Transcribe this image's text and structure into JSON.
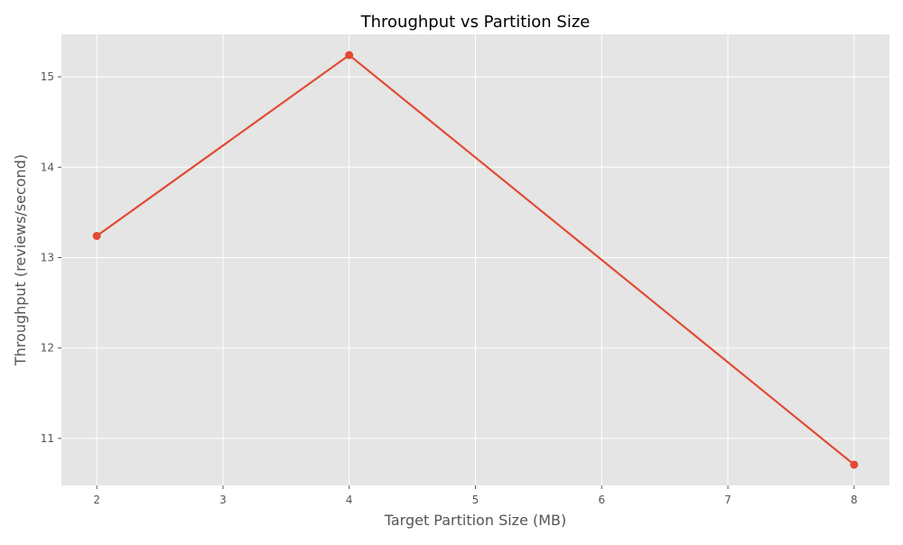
{
  "chart_data": {
    "type": "line",
    "title": "Throughput vs Partition Size",
    "xlabel": "Target Partition Size (MB)",
    "ylabel": "Throughput (reviews/second)",
    "xlim": [
      1.72,
      8.28
    ],
    "ylim": [
      10.48,
      15.47
    ],
    "x_ticks": [
      2,
      3,
      4,
      5,
      6,
      7,
      8
    ],
    "y_ticks": [
      11,
      12,
      13,
      14,
      15
    ],
    "grid": true,
    "series": [
      {
        "x": [
          2,
          4,
          8
        ],
        "y": [
          13.24,
          15.24,
          10.71
        ],
        "color": "#E24A33",
        "marker": "circle"
      }
    ]
  },
  "colors": {
    "plot_background": "#E5E5E5",
    "grid": "#FFFFFF",
    "tick_text": "#555555",
    "title_text": "#000000"
  }
}
